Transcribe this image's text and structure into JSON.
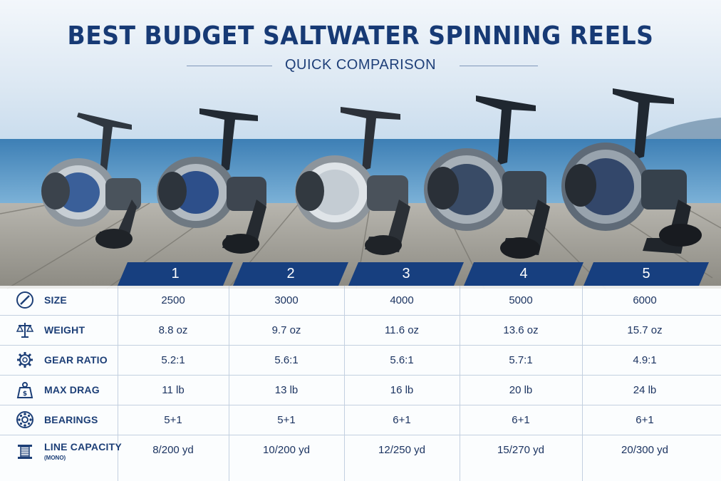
{
  "header": {
    "title": "BEST BUDGET SALTWATER SPINNING REELS",
    "subtitle": "QUICK COMPARISON"
  },
  "columns": [
    "1",
    "2",
    "3",
    "4",
    "5"
  ],
  "rows": [
    {
      "label": "SIZE",
      "sub": "",
      "icon": "ruler-icon",
      "values": [
        "2500",
        "3000",
        "4000",
        "5000",
        "6000"
      ]
    },
    {
      "label": "WEIGHT",
      "sub": "",
      "icon": "scale-icon",
      "values": [
        "8.8 oz",
        "9.7 oz",
        "11.6 oz",
        "13.6 oz",
        "15.7 oz"
      ]
    },
    {
      "label": "GEAR RATIO",
      "sub": "",
      "icon": "gear-icon",
      "values": [
        "5.2:1",
        "5.6:1",
        "5.6:1",
        "5.7:1",
        "4.9:1"
      ]
    },
    {
      "label": "MAX DRAG",
      "sub": "",
      "icon": "weight-icon",
      "values": [
        "11 lb",
        "13 lb",
        "16 lb",
        "20 lb",
        "24 lb"
      ]
    },
    {
      "label": "BEARINGS",
      "sub": "",
      "icon": "bearing-icon",
      "values": [
        "5+1",
        "5+1",
        "6+1",
        "6+1",
        "6+1"
      ]
    },
    {
      "label": "LINE CAPACITY",
      "sub": "(MONO)",
      "icon": "spool-icon",
      "values": [
        "8/200 yd",
        "10/200 yd",
        "12/250 yd",
        "15/270 yd",
        "20/300 yd"
      ]
    }
  ],
  "colors": {
    "accent": "#173f7f",
    "text": "#1d3f77",
    "sea": "#2f6fa3",
    "dock": "#9b9a94"
  }
}
